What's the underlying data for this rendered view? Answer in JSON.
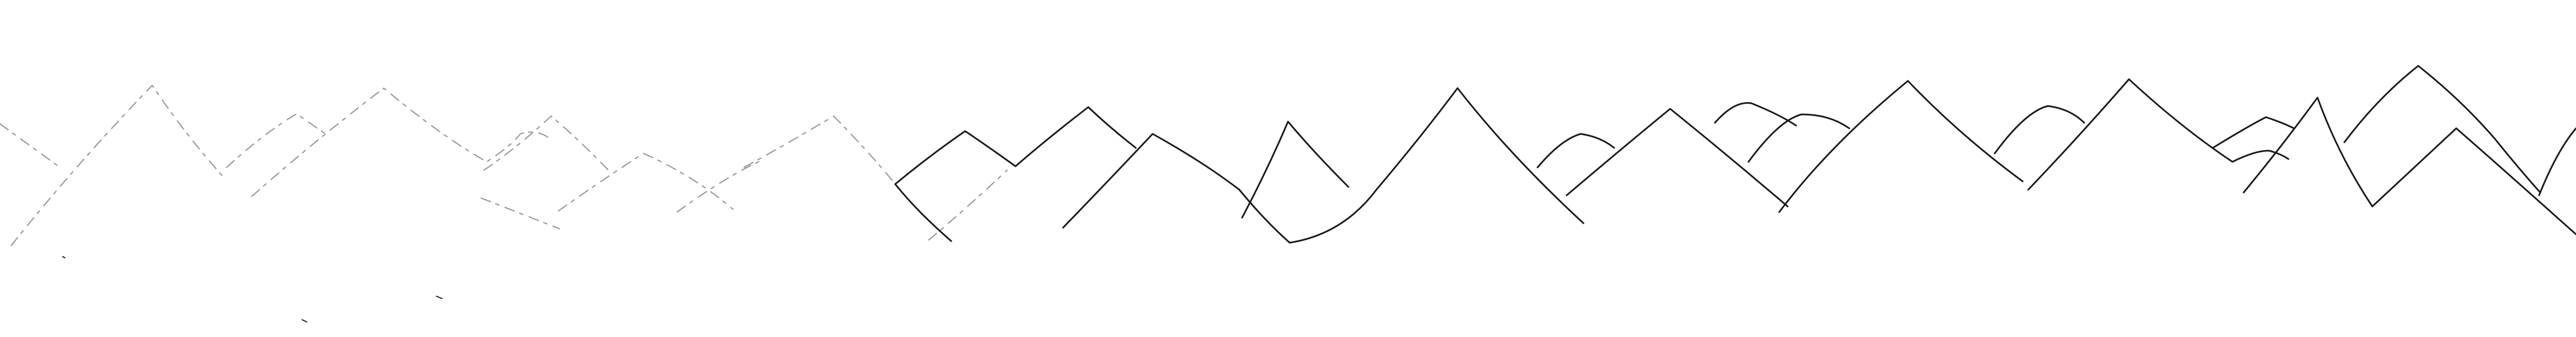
{
  "image": {
    "kind": "pencil-line-drawing",
    "subject": "mountain-range-outline",
    "background_color": "#ffffff",
    "line_color": "#1a1a1a",
    "faint_line_color": "#9a9a9a"
  }
}
